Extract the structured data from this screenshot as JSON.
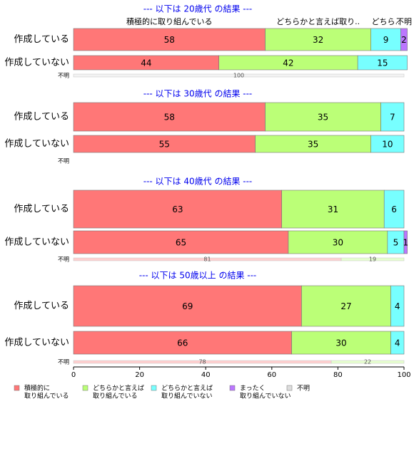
{
  "chart_data": {
    "type": "stacked_hbar",
    "series": [
      {
        "name": [
          "積極的に",
          "取り組んでいる"
        ],
        "color": "#ff7777"
      },
      {
        "name": [
          "どちらかと言えば",
          "取り組んでいる"
        ],
        "color": "#bbff77"
      },
      {
        "name": [
          "どちらかと言えば",
          "取り組んでいない"
        ],
        "color": "#77ffff"
      },
      {
        "name": [
          "まったく",
          "取り組んでいない"
        ],
        "color": "#bb77ff"
      },
      {
        "name": [
          "不明"
        ],
        "color": "#dddddd"
      }
    ],
    "panels": [
      {
        "title": "--- 以下は 20歳代 の結果 ---",
        "header_labels": [
          "積極的に取り組んでいる",
          "どちらかと言えば取り..",
          "どちら..",
          null,
          "不明"
        ],
        "rows": [
          {
            "category": "作成している",
            "values": [
              58,
              32,
              9,
              2,
              null
            ]
          },
          {
            "category": "作成していない",
            "values": [
              44,
              42,
              15,
              null,
              null
            ]
          },
          {
            "category": "不明",
            "values": [
              null,
              null,
              null,
              null,
              100
            ]
          }
        ]
      },
      {
        "title": "--- 以下は 30歳代 の結果 ---",
        "rows": [
          {
            "category": "作成している",
            "values": [
              58,
              35,
              7,
              null,
              null
            ]
          },
          {
            "category": "作成していない",
            "values": [
              55,
              35,
              10,
              null,
              null
            ]
          },
          {
            "category": "不明",
            "values": [
              null,
              null,
              null,
              null,
              null
            ]
          }
        ]
      },
      {
        "title": "--- 以下は 40歳代 の結果 ---",
        "rows": [
          {
            "category": "作成している",
            "values": [
              63,
              31,
              6,
              null,
              null
            ]
          },
          {
            "category": "作成していない",
            "values": [
              65,
              30,
              5,
              1,
              null
            ]
          },
          {
            "category": "不明",
            "values": [
              81,
              19,
              null,
              null,
              null
            ]
          }
        ]
      },
      {
        "title": "--- 以下は 50歳以上 の結果 ---",
        "rows": [
          {
            "category": "作成している",
            "values": [
              69,
              27,
              4,
              null,
              null
            ]
          },
          {
            "category": "作成していない",
            "values": [
              66,
              30,
              4,
              null,
              null
            ]
          },
          {
            "category": "不明",
            "values": [
              78,
              22,
              null,
              null,
              null
            ]
          }
        ]
      }
    ],
    "xlim": [
      0,
      100
    ],
    "xticks": [
      0,
      20,
      40,
      60,
      80,
      100
    ]
  }
}
